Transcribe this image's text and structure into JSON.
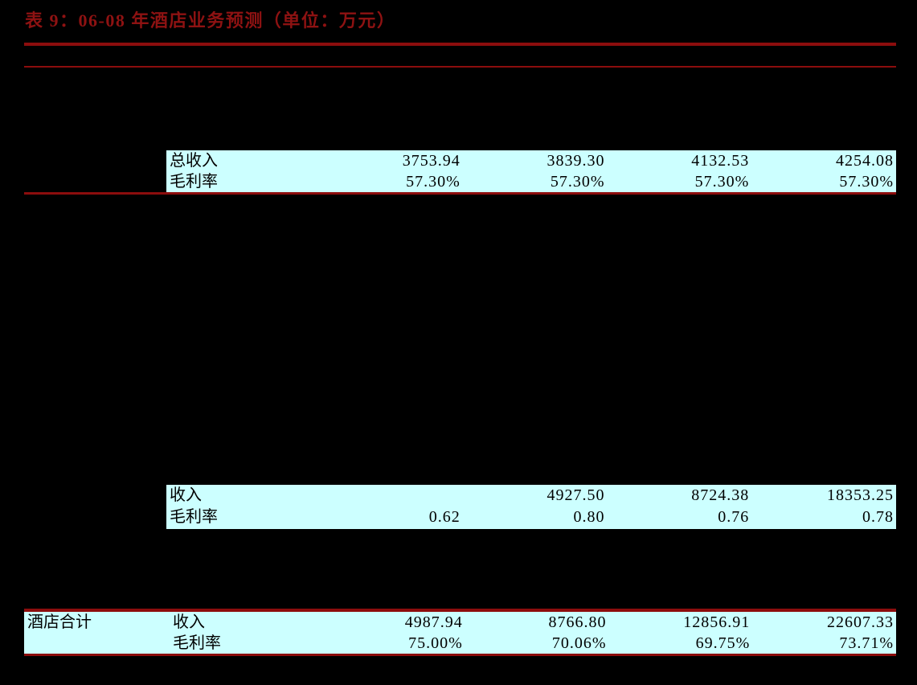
{
  "title": {
    "text": "表 9：06-08 年酒店业务预测（单位：万元）"
  },
  "colors": {
    "background": "#000000",
    "accent_red": "#8c0d0d",
    "title_red": "#8e1212",
    "row_highlight": "#ccffff",
    "table_text": "#000000"
  },
  "sections": [
    {
      "name": "hotel-business-forecast-upper",
      "rows": [
        {
          "label": "总收入",
          "values": [
            "3753.94",
            "3839.30",
            "4132.53",
            "4254.08"
          ]
        },
        {
          "label": "毛利率",
          "values": [
            "57.30%",
            "57.30%",
            "57.30%",
            "57.30%"
          ]
        }
      ]
    },
    {
      "name": "hotel-business-forecast-middle",
      "rows": [
        {
          "label": "收入",
          "values": [
            "",
            "4927.50",
            "8724.38",
            "18353.25"
          ]
        },
        {
          "label": "毛利率",
          "values": [
            "0.62",
            "0.80",
            "0.76",
            "0.78"
          ]
        }
      ]
    },
    {
      "name": "hotel-total",
      "group_label": "酒店合计",
      "rows": [
        {
          "label": "收入",
          "values": [
            "4987.94",
            "8766.80",
            "12856.91",
            "22607.33"
          ]
        },
        {
          "label": "毛利率",
          "values": [
            "75.00%",
            "70.06%",
            "69.75%",
            "73.71%"
          ]
        }
      ]
    }
  ]
}
